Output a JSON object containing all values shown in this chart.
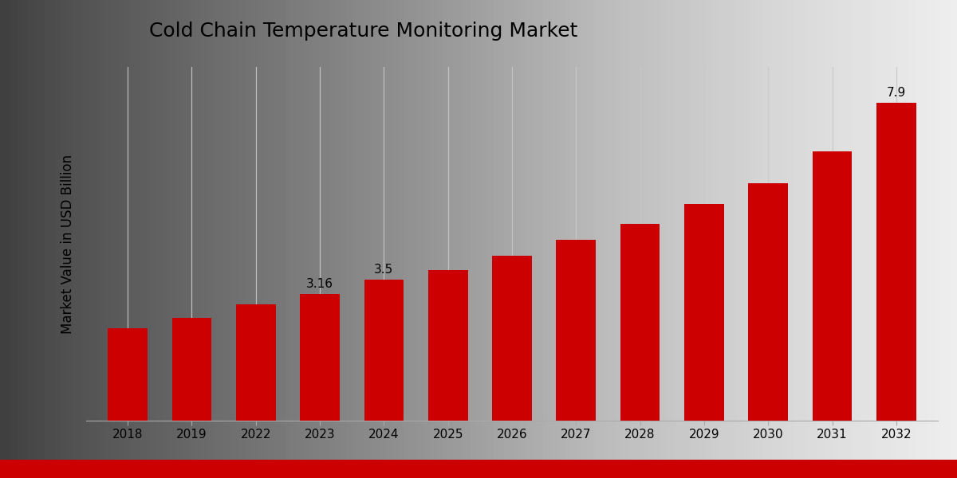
{
  "categories": [
    "2018",
    "2019",
    "2022",
    "2023",
    "2024",
    "2025",
    "2026",
    "2027",
    "2028",
    "2029",
    "2030",
    "2031",
    "2032"
  ],
  "values": [
    2.3,
    2.55,
    2.9,
    3.16,
    3.5,
    3.75,
    4.1,
    4.5,
    4.9,
    5.4,
    5.9,
    6.7,
    7.9
  ],
  "bar_color": "#cc0000",
  "label_bars": {
    "2023": "3.16",
    "2024": "3.5",
    "2032": "7.9"
  },
  "title": "Cold Chain Temperature Monitoring Market",
  "ylabel": "Market Value in USD Billion",
  "bg_left": "#d0d0d0",
  "bg_right": "#f0f0f0",
  "grid_color": "#c8c8c8",
  "title_fontsize": 18,
  "label_fontsize": 11,
  "tick_fontsize": 11,
  "ylabel_fontsize": 12,
  "ylim": [
    0,
    8.8
  ],
  "footer_color": "#cc0000"
}
